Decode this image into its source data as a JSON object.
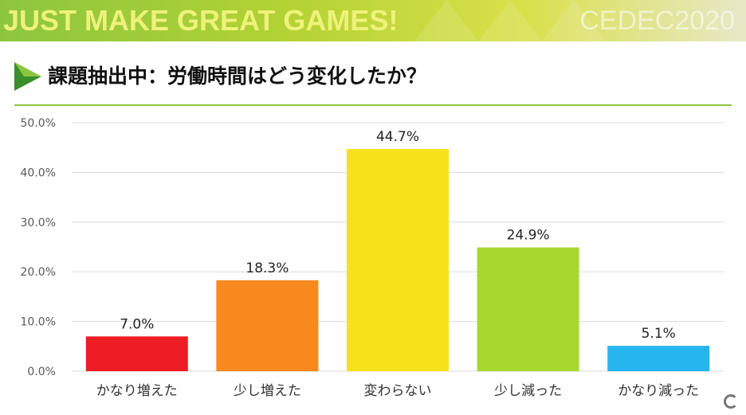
{
  "banner": {
    "text": "JUST MAKE GREAT GAMES!",
    "logo": "CEDEC2020"
  },
  "slide": {
    "title": "課題抽出中：労働時間はどう変化したか？"
  },
  "colors": {
    "accent": "#8cc63f",
    "grid": "#d9d9d9"
  },
  "chart_data": {
    "type": "bar",
    "title": "",
    "xlabel": "",
    "ylabel": "",
    "categories": [
      "かなり増えた",
      "少し増えた",
      "変わらない",
      "少し減った",
      "かなり減った"
    ],
    "values": [
      7.0,
      18.3,
      44.7,
      24.9,
      5.1
    ],
    "data_labels": [
      "7.0%",
      "18.3%",
      "44.7%",
      "24.9%",
      "5.1%"
    ],
    "colors": [
      "#ee1d24",
      "#f7891f",
      "#f7e11b",
      "#a6d82f",
      "#27b5ee"
    ],
    "ylim": [
      0,
      50
    ],
    "yticks": [
      0,
      10,
      20,
      30,
      40,
      50
    ],
    "ytick_labels": [
      "0.0%",
      "10.0%",
      "20.0%",
      "30.0%",
      "40.0%",
      "50.0%"
    ],
    "grid": true,
    "legend": "none"
  }
}
